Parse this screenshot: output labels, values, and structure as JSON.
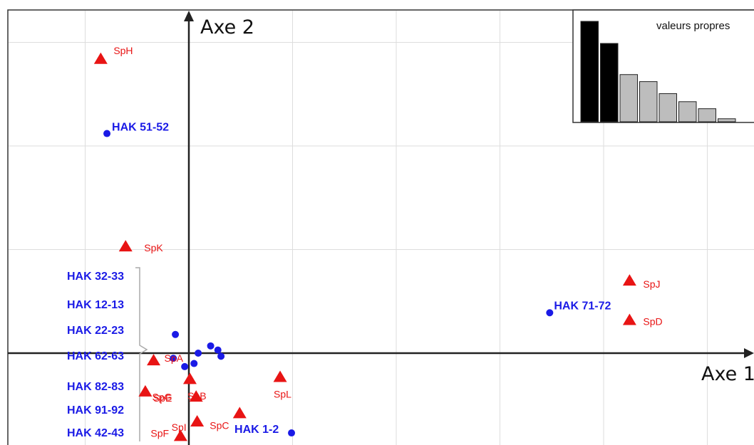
{
  "chart_data": {
    "type": "scatter",
    "title": "",
    "xlabel": "Axe 1",
    "ylabel": "Axe 2",
    "xlim": [
      -1.8,
      5.4
    ],
    "ylim": [
      -0.87,
      3.33
    ],
    "grid": true,
    "colors": {
      "sites": "#1a1ae6",
      "species": "#e81414",
      "axes": "#222222",
      "grid": "#dddddd"
    },
    "series": [
      {
        "name": "",
        "marker": "circle",
        "points": [
          {
            "label": "HAK 51-52",
            "x": -0.79,
            "y": 2.12
          },
          {
            "label": "HAK 71-72",
            "x": 3.48,
            "y": 0.39
          },
          {
            "label": "HAK 1-2",
            "x": 0.99,
            "y": -0.77
          },
          {
            "label": "",
            "x": -0.13,
            "y": 0.18
          },
          {
            "label": "",
            "x": 0.09,
            "y": 0.0
          },
          {
            "label": "",
            "x": 0.21,
            "y": 0.07
          },
          {
            "label": "",
            "x": 0.28,
            "y": 0.03
          },
          {
            "label": "",
            "x": 0.31,
            "y": -0.03
          },
          {
            "label": "",
            "x": 0.05,
            "y": -0.1
          },
          {
            "label": "",
            "x": -0.04,
            "y": -0.13
          },
          {
            "label": "",
            "x": -0.15,
            "y": -0.05
          }
        ]
      },
      {
        "name": "",
        "marker": "triangle",
        "points": [
          {
            "label": "SpH",
            "x": -0.85,
            "y": 2.84
          },
          {
            "label": "SpK",
            "x": -0.61,
            "y": 1.03
          },
          {
            "label": "SpJ",
            "x": 4.25,
            "y": 0.7
          },
          {
            "label": "SpD",
            "x": 4.25,
            "y": 0.32
          },
          {
            "label": "SpA",
            "x": -0.34,
            "y": -0.07
          },
          {
            "label": "SpG",
            "x": 0.01,
            "y": -0.25
          },
          {
            "label": "SpE",
            "x": -0.42,
            "y": -0.37
          },
          {
            "label": "SpB",
            "x": 0.07,
            "y": -0.42
          },
          {
            "label": "SpL",
            "x": 0.88,
            "y": -0.23
          },
          {
            "label": "SpC",
            "x": 0.49,
            "y": -0.58
          },
          {
            "label": "SpI",
            "x": 0.08,
            "y": -0.66
          },
          {
            "label": "SpF",
            "x": -0.08,
            "y": -0.8
          }
        ]
      }
    ],
    "bracket_labels": [
      "HAK 32-33",
      "HAK 12-13",
      "HAK 22-23",
      "HAK 62-63",
      "HAK 82-83",
      "HAK 91-92",
      "HAK 42-43"
    ],
    "inset": {
      "title": "valeurs propres",
      "type": "bar",
      "values": [
        1.0,
        0.78,
        0.47,
        0.4,
        0.28,
        0.2,
        0.13,
        0.03
      ],
      "highlighted": 2,
      "colors": {
        "highlight": "#000000",
        "other": "#bdbdbd"
      }
    }
  }
}
